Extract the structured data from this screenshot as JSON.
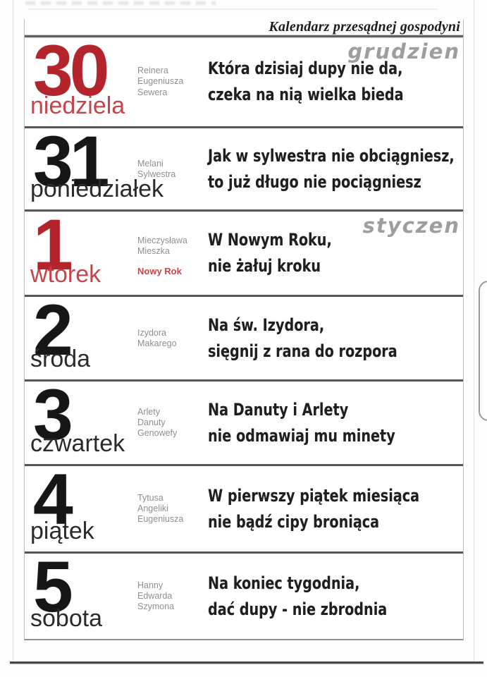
{
  "theme": {
    "red": "#b3242c",
    "red_soft": "#c4454c",
    "gray_text": "#8f8f8f",
    "month_gray": "#9e9e9e",
    "ink": "#1f1f1f"
  },
  "header": {
    "title": "Kalendarz przesądnej gospodyni"
  },
  "rows": [
    {
      "day_number": "30",
      "day_name": "niedziela",
      "month_label": "grudzien",
      "name_days": [
        "Reinera",
        "Eugeniusza",
        "Sewera"
      ],
      "verse_line1": "Która dzisiaj dupy nie da,",
      "verse_line2": "czeka na nią wielka bieda"
    },
    {
      "day_number": "31",
      "day_name": "poniedziałek",
      "name_days": [
        "Melani",
        "Sylwestra"
      ],
      "verse_line1": "Jak w sylwestra nie obciągniesz,",
      "verse_line2": "to już długo nie pociągniesz"
    },
    {
      "day_number": "1",
      "day_name": "wtorek",
      "month_label": "styczen",
      "name_days": [
        "Mieczysława",
        "Mieszka"
      ],
      "holiday_label": "Nowy Rok",
      "verse_line1": "W Nowym Roku,",
      "verse_line2": "nie żałuj kroku"
    },
    {
      "day_number": "2",
      "day_name": "środa",
      "name_days": [
        "Izydora",
        "Makarego"
      ],
      "verse_line1": "Na św. Izydora,",
      "verse_line2": "sięgnij z rana do rozpora"
    },
    {
      "day_number": "3",
      "day_name": "czwartek",
      "name_days": [
        "Arlety",
        "Danuty",
        "Genowefy"
      ],
      "verse_line1": "Na Danuty i Arlety",
      "verse_line2": "nie odmawiaj mu minety"
    },
    {
      "day_number": "4",
      "day_name": "piątek",
      "name_days": [
        "Tytusa",
        "Angeliki",
        "Eugeniusza"
      ],
      "verse_line1": "W pierwszy piątek miesiąca",
      "verse_line2": "nie bądź cipy broniąca"
    },
    {
      "day_number": "5",
      "day_name": "sobota",
      "name_days": [
        "Hanny",
        "Edwarda",
        "Szymona"
      ],
      "verse_line1": "Na koniec tygodnia,",
      "verse_line2": "dać dupy - nie zbrodnia"
    }
  ]
}
